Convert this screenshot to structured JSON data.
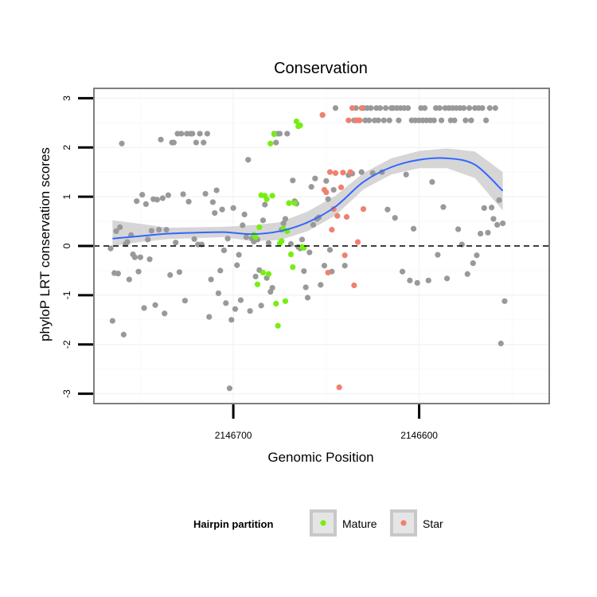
{
  "chart_data": {
    "type": "scatter",
    "title": "Conservation",
    "xlabel": "Genomic Position",
    "ylabel": "phyloP LRT conservation scores",
    "x_reversed": true,
    "xlim": [
      2146775,
      2146530
    ],
    "ylim": [
      -3.2,
      3.2
    ],
    "x_ticks": [
      2146700,
      2146600
    ],
    "x_tick_labels": [
      "2146700",
      "2146600"
    ],
    "y_ticks": [
      -3,
      -2,
      -1,
      0,
      1,
      2,
      3
    ],
    "y_tick_labels": [
      "-3",
      "-2",
      "-1",
      "0",
      "1",
      "2",
      "3"
    ],
    "grid": true,
    "reference_line": {
      "y": 0,
      "style": "dashed"
    },
    "legend": {
      "title": "Hairpin partition",
      "position": "bottom",
      "entries": [
        "Mature",
        "Star"
      ]
    },
    "colors": {
      "other": "#999999",
      "Mature": "#77ee11",
      "Star": "#f08070",
      "smooth": "#3366ff",
      "band": "#c8c8c8"
    },
    "series": [
      {
        "group": "other",
        "points": [
          [
            2146766,
            -0.05
          ],
          [
            2146765,
            -1.52
          ],
          [
            2146764,
            -0.55
          ],
          [
            2146763,
            0.3
          ],
          [
            2146762,
            -0.56
          ],
          [
            2146761,
            0.38
          ],
          [
            2146760,
            2.08
          ],
          [
            2146759,
            -1.8
          ],
          [
            2146758,
            0.04
          ],
          [
            2146757,
            0.08
          ],
          [
            2146756,
            -0.68
          ],
          [
            2146755,
            0.22
          ],
          [
            2146754,
            -0.17
          ],
          [
            2146753,
            -0.23
          ],
          [
            2146752,
            0.91
          ],
          [
            2146751,
            -0.52
          ],
          [
            2146750,
            -0.23
          ],
          [
            2146749,
            1.04
          ],
          [
            2146748,
            -1.26
          ],
          [
            2146747,
            0.85
          ],
          [
            2146746,
            0.13
          ],
          [
            2146745,
            -0.27
          ],
          [
            2146744,
            0.31
          ],
          [
            2146743,
            0.95
          ],
          [
            2146742,
            -1.2
          ],
          [
            2146741,
            0.94
          ],
          [
            2146740,
            0.33
          ],
          [
            2146739,
            2.16
          ],
          [
            2146738,
            0.97
          ],
          [
            2146737,
            -1.37
          ],
          [
            2146736,
            0.33
          ],
          [
            2146735,
            1.03
          ],
          [
            2146734,
            -0.59
          ],
          [
            2146733,
            2.1
          ],
          [
            2146732,
            2.1
          ],
          [
            2146731,
            0.07
          ],
          [
            2146730,
            2.28
          ],
          [
            2146729,
            -0.53
          ],
          [
            2146728,
            2.28
          ],
          [
            2146727,
            1.05
          ],
          [
            2146726,
            -1.11
          ],
          [
            2146725,
            2.28
          ],
          [
            2146724,
            0.9
          ],
          [
            2146723,
            2.28
          ],
          [
            2146722,
            2.28
          ],
          [
            2146721,
            0.14
          ],
          [
            2146720,
            2.1
          ],
          [
            2146719,
            0.03
          ],
          [
            2146718,
            2.28
          ],
          [
            2146717,
            0.03
          ],
          [
            2146716,
            2.1
          ],
          [
            2146715,
            1.06
          ],
          [
            2146714,
            2.28
          ],
          [
            2146713,
            -1.44
          ],
          [
            2146712,
            -0.68
          ],
          [
            2146711,
            0.89
          ],
          [
            2146710,
            0.67
          ],
          [
            2146709,
            1.13
          ],
          [
            2146708,
            -0.96
          ],
          [
            2146707,
            -0.5
          ],
          [
            2146706,
            0.74
          ],
          [
            2146705,
            -0.09
          ],
          [
            2146704,
            -1.16
          ],
          [
            2146703,
            0.15
          ],
          [
            2146702,
            -2.89
          ],
          [
            2146701,
            -1.5
          ],
          [
            2146700,
            0.77
          ],
          [
            2146699,
            -1.28
          ],
          [
            2146698,
            -0.39
          ],
          [
            2146697,
            -0.18
          ],
          [
            2146696,
            -1.1
          ],
          [
            2146695,
            0.42
          ],
          [
            2146694,
            0.64
          ],
          [
            2146693,
            0.18
          ],
          [
            2146692,
            1.75
          ],
          [
            2146691,
            -1.32
          ],
          [
            2146690,
            0.15
          ],
          [
            2146689,
            0.09
          ],
          [
            2146688,
            -0.62
          ],
          [
            2146687,
            0.13
          ],
          [
            2146686,
            -0.49
          ],
          [
            2146685,
            -1.21
          ],
          [
            2146684,
            0.52
          ],
          [
            2146683,
            0.84
          ],
          [
            2146682,
            -0.65
          ],
          [
            2146681,
            0.06
          ],
          [
            2146680,
            -0.93
          ],
          [
            2146679,
            -0.85
          ],
          [
            2146678,
            2.28
          ],
          [
            2146677,
            2.1
          ],
          [
            2146676,
            2.28
          ],
          [
            2146675,
            2.28
          ],
          [
            2146674,
            0.33
          ],
          [
            2146673,
            0.46
          ],
          [
            2146672,
            0.55
          ],
          [
            2146671,
            2.28
          ],
          [
            2146670,
            0.87
          ],
          [
            2146669,
            0.04
          ],
          [
            2146668,
            1.33
          ],
          [
            2146667,
            0.91
          ],
          [
            2146666,
            0.86
          ],
          [
            2146665,
            -0.02
          ],
          [
            2146664,
            -0.05
          ],
          [
            2146663,
            0.13
          ],
          [
            2146662,
            -0.51
          ],
          [
            2146661,
            -0.84
          ],
          [
            2146660,
            -1.05
          ],
          [
            2146659,
            -0.13
          ],
          [
            2146658,
            1.2
          ],
          [
            2146657,
            0.43
          ],
          [
            2146656,
            1.37
          ],
          [
            2146655,
            0.55
          ],
          [
            2146654,
            0.58
          ],
          [
            2146653,
            -0.79
          ],
          [
            2146652,
            2.66
          ],
          [
            2146651,
            -0.4
          ],
          [
            2146650,
            1.32
          ],
          [
            2146649,
            0.95
          ],
          [
            2146648,
            -0.08
          ],
          [
            2146647,
            -0.52
          ],
          [
            2146646,
            1.14
          ],
          [
            2146645,
            2.8
          ],
          [
            2146640,
            -0.4
          ],
          [
            2146638,
            1.44
          ],
          [
            2146636,
            1.47
          ],
          [
            2146635,
            2.55
          ],
          [
            2146634,
            2.8
          ],
          [
            2146633,
            2.55
          ],
          [
            2146631,
            1.5
          ],
          [
            2146630,
            2.8
          ],
          [
            2146629,
            2.55
          ],
          [
            2146628,
            2.8
          ],
          [
            2146627,
            2.55
          ],
          [
            2146626,
            2.8
          ],
          [
            2146625,
            1.48
          ],
          [
            2146624,
            2.55
          ],
          [
            2146623,
            2.8
          ],
          [
            2146622,
            2.55
          ],
          [
            2146621,
            2.8
          ],
          [
            2146620,
            1.5
          ],
          [
            2146619,
            2.55
          ],
          [
            2146618,
            2.8
          ],
          [
            2146617,
            0.74
          ],
          [
            2146616,
            2.55
          ],
          [
            2146615,
            2.8
          ],
          [
            2146614,
            2.8
          ],
          [
            2146613,
            0.57
          ],
          [
            2146612,
            2.8
          ],
          [
            2146611,
            2.55
          ],
          [
            2146610,
            2.8
          ],
          [
            2146609,
            -0.52
          ],
          [
            2146608,
            2.8
          ],
          [
            2146607,
            1.45
          ],
          [
            2146606,
            2.8
          ],
          [
            2146605,
            -0.7
          ],
          [
            2146604,
            2.55
          ],
          [
            2146603,
            0.35
          ],
          [
            2146602,
            2.55
          ],
          [
            2146601,
            -0.75
          ],
          [
            2146600,
            2.55
          ],
          [
            2146599,
            2.8
          ],
          [
            2146598,
            2.55
          ],
          [
            2146597,
            2.8
          ],
          [
            2146596,
            2.55
          ],
          [
            2146595,
            -0.7
          ],
          [
            2146594,
            2.55
          ],
          [
            2146593,
            1.3
          ],
          [
            2146592,
            2.55
          ],
          [
            2146591,
            2.8
          ],
          [
            2146590,
            -0.18
          ],
          [
            2146589,
            2.8
          ],
          [
            2146588,
            2.55
          ],
          [
            2146587,
            0.79
          ],
          [
            2146586,
            2.8
          ],
          [
            2146585,
            -0.66
          ],
          [
            2146584,
            2.8
          ],
          [
            2146583,
            2.55
          ],
          [
            2146582,
            2.8
          ],
          [
            2146581,
            2.55
          ],
          [
            2146580,
            2.8
          ],
          [
            2146579,
            0.34
          ],
          [
            2146578,
            2.8
          ],
          [
            2146577,
            0.03
          ],
          [
            2146576,
            2.8
          ],
          [
            2146575,
            2.55
          ],
          [
            2146574,
            -0.57
          ],
          [
            2146573,
            2.8
          ],
          [
            2146572,
            2.55
          ],
          [
            2146571,
            -0.35
          ],
          [
            2146570,
            2.8
          ],
          [
            2146569,
            -0.19
          ],
          [
            2146568,
            2.8
          ],
          [
            2146567,
            0.25
          ],
          [
            2146566,
            2.8
          ],
          [
            2146565,
            0.77
          ],
          [
            2146564,
            2.55
          ],
          [
            2146563,
            0.27
          ],
          [
            2146562,
            2.8
          ],
          [
            2146561,
            0.78
          ],
          [
            2146560,
            0.55
          ],
          [
            2146559,
            2.8
          ],
          [
            2146558,
            0.43
          ],
          [
            2146557,
            0.93
          ],
          [
            2146556,
            -1.98
          ],
          [
            2146555,
            0.46
          ],
          [
            2146554,
            -1.12
          ]
        ]
      },
      {
        "group": "Mature",
        "points": [
          [
            2146689,
            0.23
          ],
          [
            2146688,
            0.18
          ],
          [
            2146687,
            -0.78
          ],
          [
            2146686,
            0.38
          ],
          [
            2146685,
            1.03
          ],
          [
            2146684,
            -0.54
          ],
          [
            2146683,
            1.02
          ],
          [
            2146682,
            0.95
          ],
          [
            2146681,
            -0.57
          ],
          [
            2146680,
            2.08
          ],
          [
            2146679,
            1.02
          ],
          [
            2146678,
            2.27
          ],
          [
            2146677,
            -1.17
          ],
          [
            2146676,
            -1.62
          ],
          [
            2146675,
            0.05
          ],
          [
            2146674,
            0.1
          ],
          [
            2146673,
            0.35
          ],
          [
            2146672,
            -1.12
          ],
          [
            2146671,
            0.3
          ],
          [
            2146670,
            0.87
          ],
          [
            2146669,
            -0.17
          ],
          [
            2146668,
            -0.43
          ],
          [
            2146667,
            0.87
          ],
          [
            2146666,
            2.53
          ],
          [
            2146665,
            2.43
          ],
          [
            2146664,
            2.45
          ],
          [
            2146663,
            -0.02
          ],
          [
            2146662,
            -0.04
          ]
        ]
      },
      {
        "group": "Star",
        "points": [
          [
            2146652,
            2.66
          ],
          [
            2146651,
            1.14
          ],
          [
            2146650,
            1.09
          ],
          [
            2146649,
            -0.54
          ],
          [
            2146648,
            1.5
          ],
          [
            2146647,
            0.33
          ],
          [
            2146646,
            0.75
          ],
          [
            2146645,
            1.48
          ],
          [
            2146644,
            0.61
          ],
          [
            2146643,
            -2.87
          ],
          [
            2146642,
            1.19
          ],
          [
            2146641,
            1.49
          ],
          [
            2146640,
            -0.19
          ],
          [
            2146639,
            0.59
          ],
          [
            2146638,
            2.55
          ],
          [
            2146637,
            1.5
          ],
          [
            2146636,
            2.8
          ],
          [
            2146635,
            -0.8
          ],
          [
            2146634,
            2.55
          ],
          [
            2146633,
            0.08
          ],
          [
            2146632,
            2.55
          ],
          [
            2146631,
            2.8
          ],
          [
            2146630,
            0.75
          ]
        ]
      }
    ],
    "smooth": {
      "x": [
        2146765,
        2146750,
        2146735,
        2146720,
        2146705,
        2146690,
        2146675,
        2146660,
        2146645,
        2146630,
        2146615,
        2146600,
        2146585,
        2146570,
        2146555
      ],
      "y": [
        0.15,
        0.2,
        0.25,
        0.27,
        0.28,
        0.24,
        0.3,
        0.48,
        0.8,
        1.3,
        1.6,
        1.75,
        1.78,
        1.65,
        1.12
      ],
      "lower": [
        0.0,
        0.08,
        0.14,
        0.16,
        0.18,
        0.1,
        0.12,
        0.3,
        0.62,
        1.15,
        1.45,
        1.58,
        1.58,
        1.38,
        0.72
      ],
      "upper": [
        0.52,
        0.45,
        0.37,
        0.38,
        0.39,
        0.42,
        0.48,
        0.7,
        1.02,
        1.48,
        1.78,
        1.93,
        1.98,
        1.92,
        1.5
      ]
    }
  }
}
